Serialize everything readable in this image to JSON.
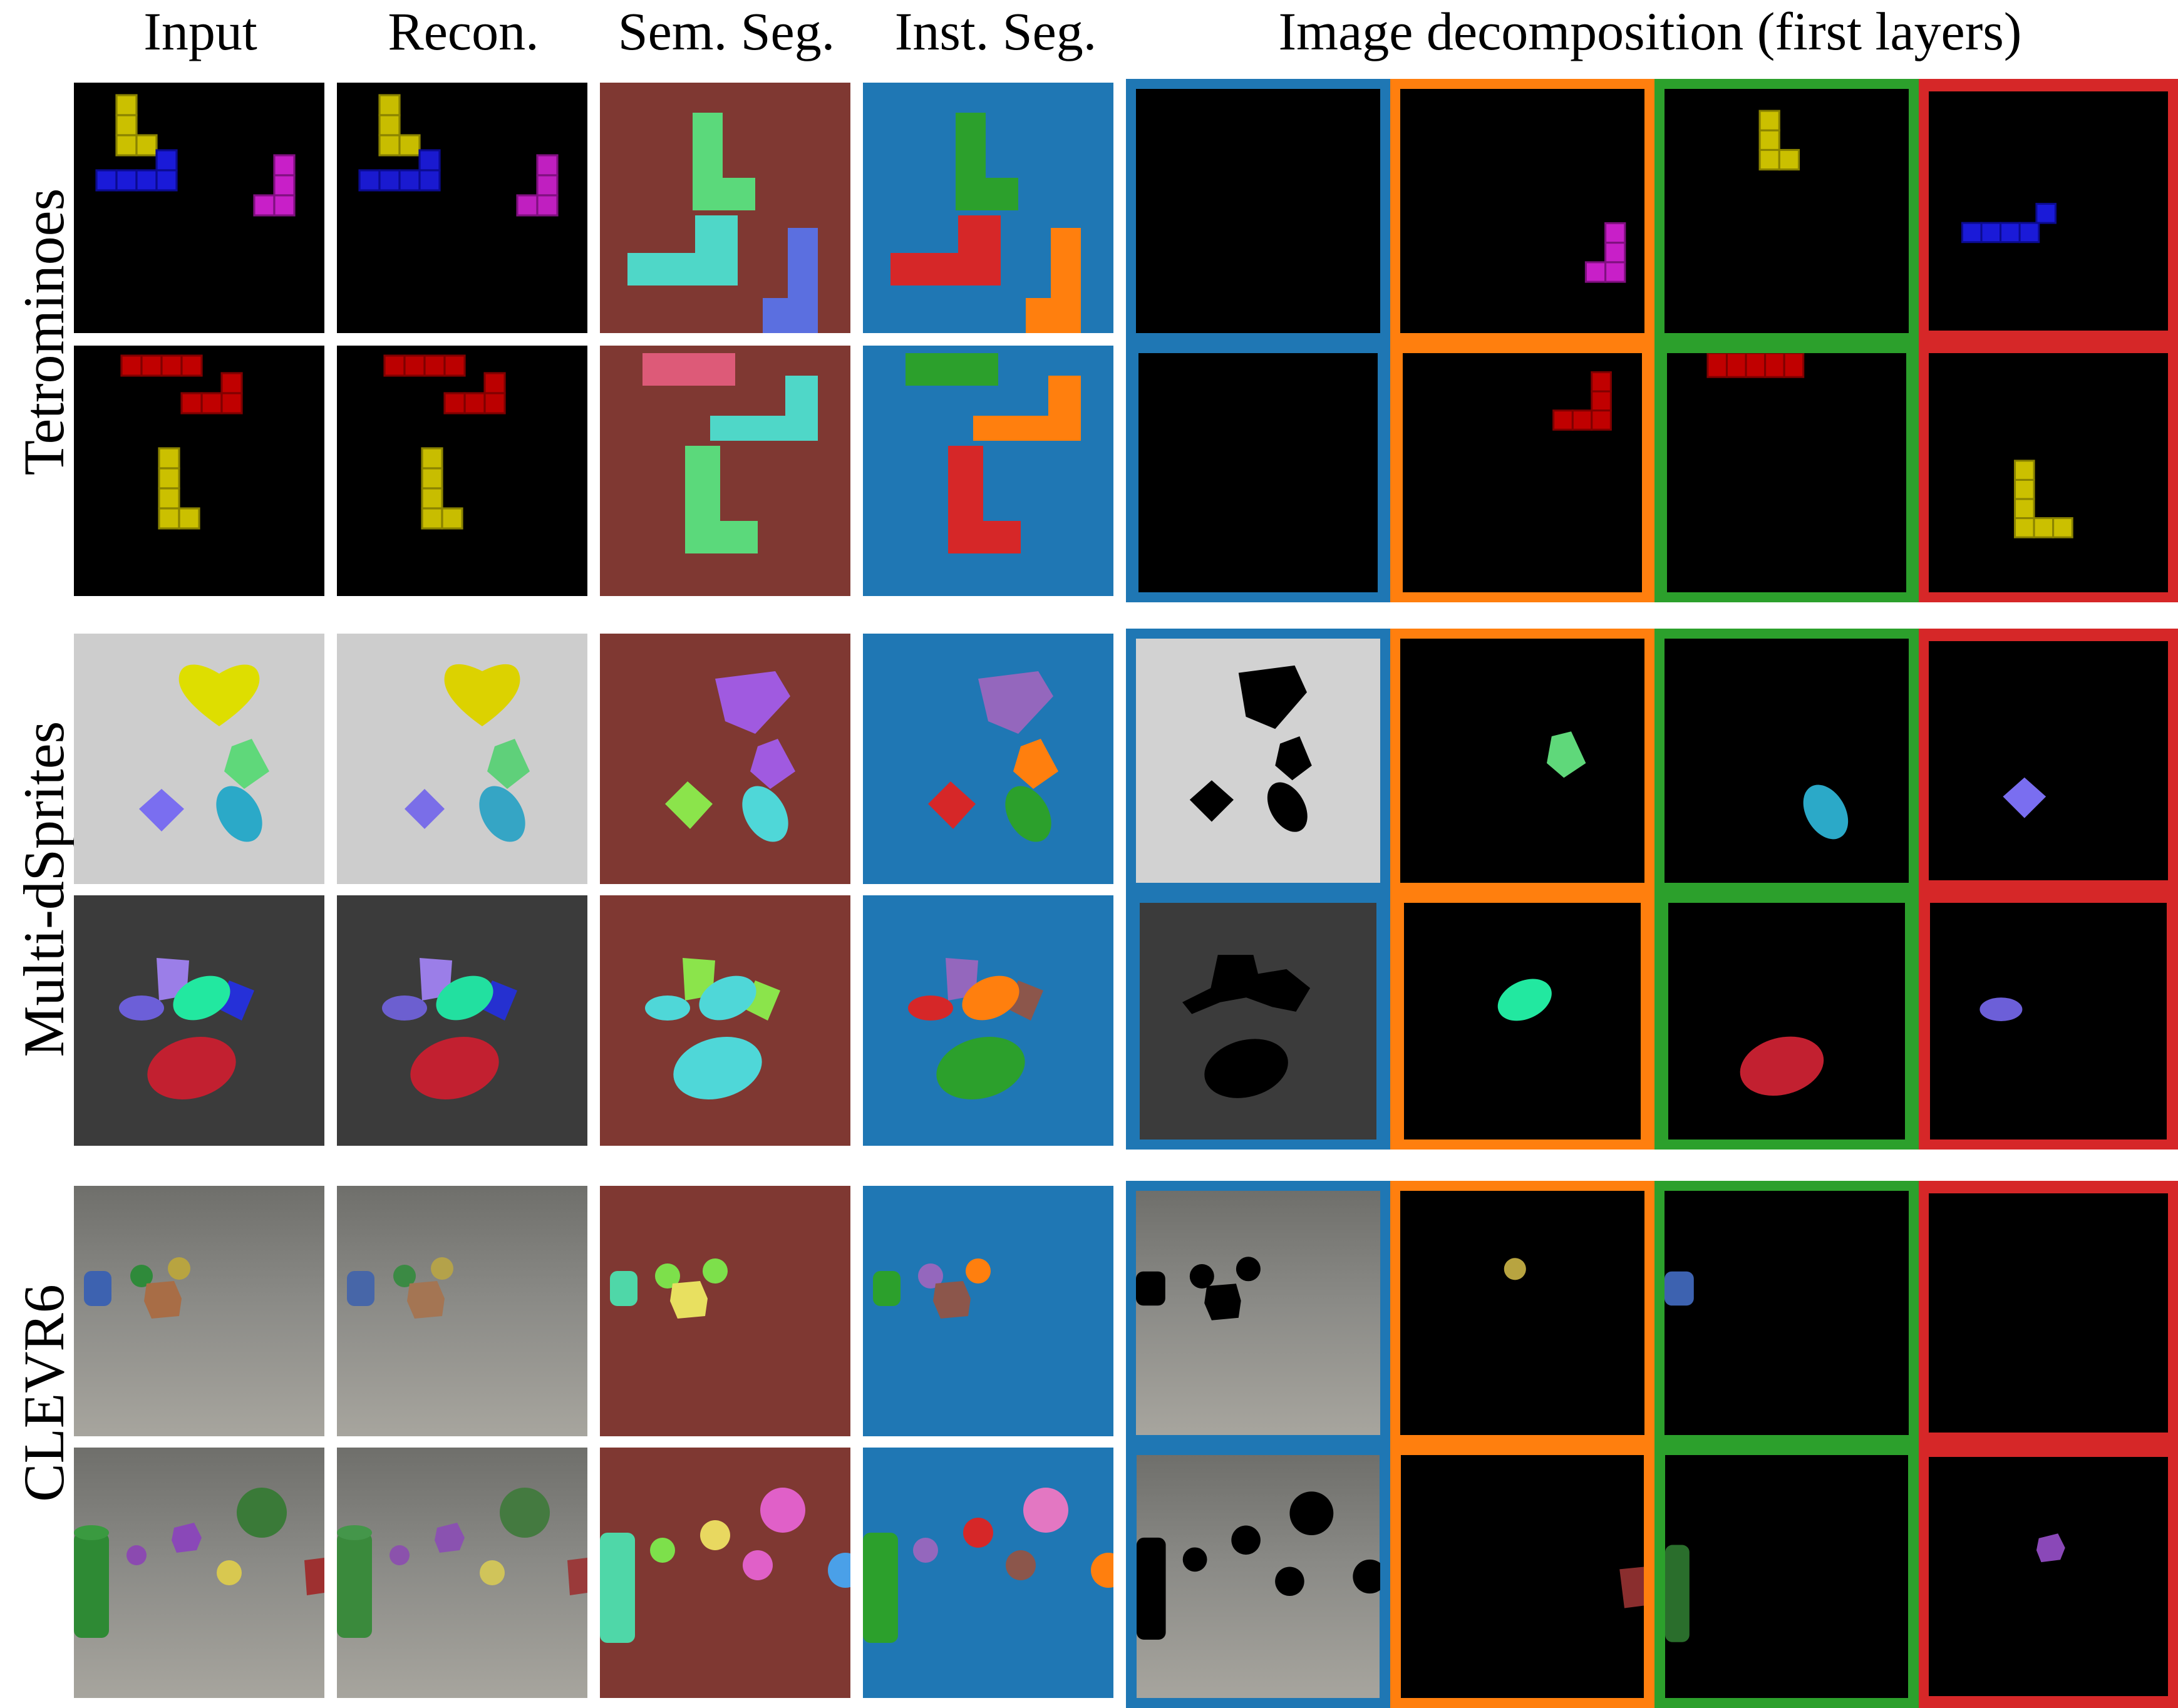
{
  "headers": {
    "input": "Input",
    "recon": "Recon.",
    "sem_seg": "Sem. Seg.",
    "inst_seg": "Inst. Seg.",
    "decomposition": "Image decomposition (first layers)"
  },
  "datasets": [
    {
      "label": "Tetrominoes"
    },
    {
      "label": "Multi-dSprites"
    },
    {
      "label": "CLEVR6"
    }
  ],
  "colors": {
    "layer_borders": [
      "#1f77b4",
      "#ff7f0e",
      "#2ca02c",
      "#d62728"
    ],
    "sem_seg_background": "#7f3832",
    "inst_seg_background": "#1f77b4"
  }
}
